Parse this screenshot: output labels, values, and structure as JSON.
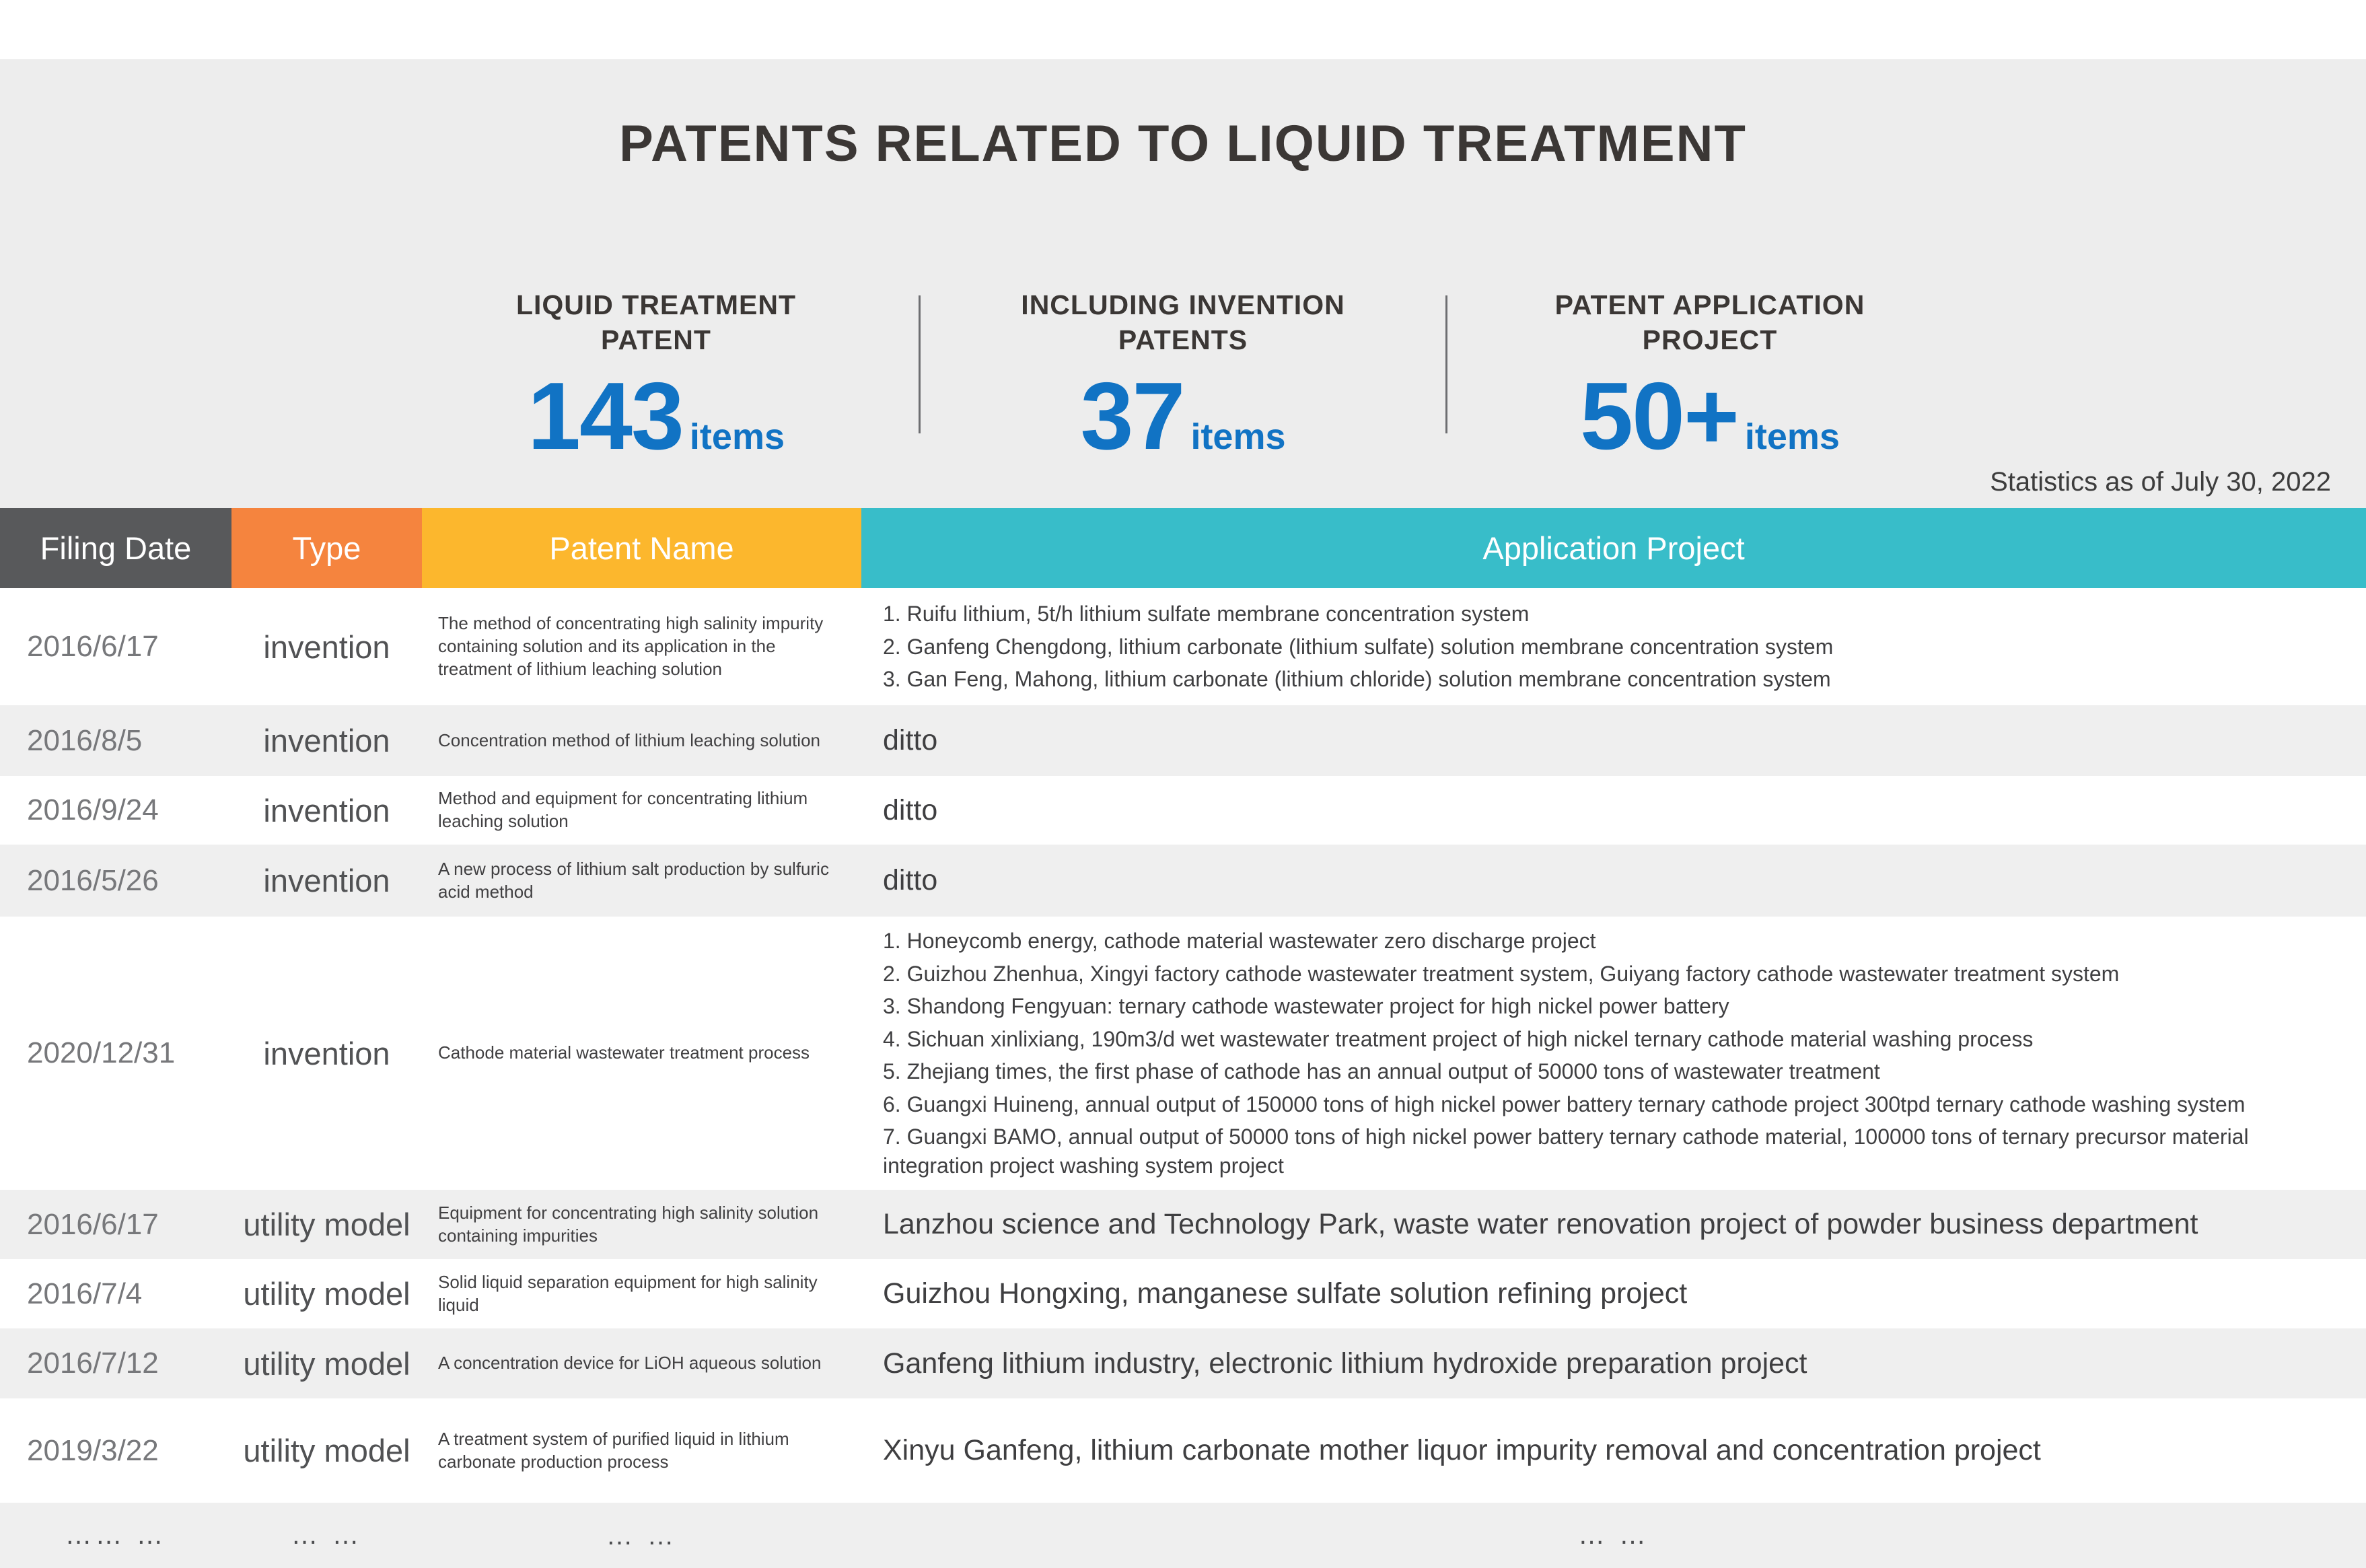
{
  "page": {
    "title": "PATENTS RELATED TO LIQUID TREATMENT",
    "note": "Statistics as of July 30, 2022"
  },
  "colors": {
    "accent_blue": "#1173c4",
    "header_gray": "#58595b",
    "header_orange": "#f5843e",
    "header_yellow": "#fcb72d",
    "header_teal": "#38bdc9",
    "hero_bg": "#ededed",
    "row_stripe": "#efefef"
  },
  "stats": [
    {
      "label1": "LIQUID TREATMENT",
      "label2": "PATENT",
      "value": "143",
      "unit": "items"
    },
    {
      "label1": "INCLUDING INVENTION",
      "label2": "PATENTS",
      "value": "37",
      "unit": "items"
    },
    {
      "label1": "PATENT APPLICATION",
      "label2": "PROJECT",
      "value": "50+",
      "unit": "items"
    }
  ],
  "table": {
    "headers": [
      "Filing Date",
      "Type",
      "Patent Name",
      "Application Project"
    ],
    "rows": [
      {
        "kind": "list",
        "date": "2016/6/17",
        "type": "invention",
        "name": "The method of concentrating high salinity impurity containing solution and its application in the treatment of lithium leaching solution",
        "app": [
          "1. Ruifu lithium, 5t/h lithium sulfate membrane concentration system",
          "2. Ganfeng Chengdong, lithium carbonate (lithium sulfate) solution membrane concentration system",
          "3. Gan Feng, Mahong, lithium carbonate (lithium chloride) solution membrane concentration system"
        ]
      },
      {
        "kind": "ditto",
        "date": "2016/8/5",
        "type": "invention",
        "name": "Concentration method of lithium leaching solution",
        "app": "ditto"
      },
      {
        "kind": "ditto",
        "date": "2016/9/24",
        "type": "invention",
        "name": "Method and equipment for concentrating lithium leaching solution",
        "app": "ditto"
      },
      {
        "kind": "ditto",
        "date": "2016/5/26",
        "type": "invention",
        "name": "A new process of lithium salt production by sulfuric acid method",
        "app": "ditto"
      },
      {
        "kind": "list",
        "date": "2020/12/31",
        "type": "invention",
        "name": "Cathode material wastewater treatment process",
        "app": [
          "1. Honeycomb energy, cathode material wastewater zero discharge project",
          "2. Guizhou Zhenhua, Xingyi factory cathode wastewater treatment system, Guiyang factory cathode wastewater treatment system",
          "3. Shandong Fengyuan: ternary cathode wastewater project for high nickel power battery",
          "4. Sichuan xinlixiang, 190m3/d wet wastewater treatment project of high nickel ternary cathode material washing process",
          "5. Zhejiang times, the first phase of cathode has an annual output of 50000 tons of wastewater treatment",
          "6. Guangxi Huineng, annual output of 150000 tons of high nickel power battery ternary cathode project 300tpd ternary cathode washing system",
          "7. Guangxi BAMO, annual output of 50000 tons of high nickel power battery ternary cathode material, 100000 tons of ternary precursor material integration project washing system project"
        ]
      },
      {
        "kind": "single",
        "date": "2016/6/17",
        "type": "utility model",
        "name": "Equipment for concentrating high salinity solution containing impurities",
        "app": "Lanzhou science and Technology Park, waste water renovation project of powder business department"
      },
      {
        "kind": "single",
        "date": "2016/7/4",
        "type": "utility model",
        "name": "Solid liquid separation equipment for high salinity liquid",
        "app": "Guizhou Hongxing, manganese sulfate solution refining project"
      },
      {
        "kind": "single",
        "date": "2016/7/12",
        "type": "utility model",
        "name": "A concentration device for LiOH aqueous solution",
        "app": "Ganfeng lithium industry, electronic lithium hydroxide preparation project"
      },
      {
        "kind": "single",
        "date": "2019/3/22",
        "type": "utility model",
        "name": "A treatment system of purified liquid in lithium carbonate production process",
        "app": "Xinyu Ganfeng, lithium carbonate mother liquor impurity removal and concentration project"
      },
      {
        "kind": "dots",
        "date": "…… …",
        "type": "… …",
        "name": "… …",
        "app": "… …"
      }
    ]
  }
}
